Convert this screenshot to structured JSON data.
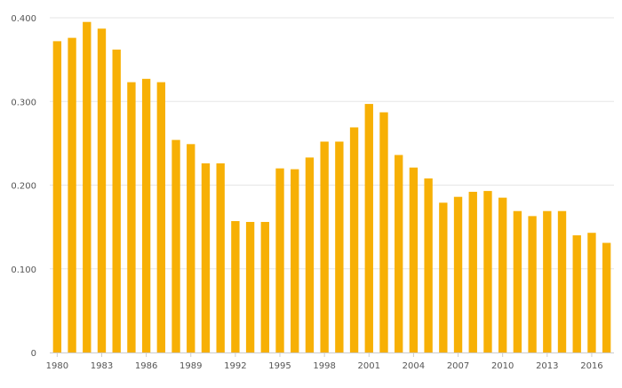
{
  "chart_data": {
    "type": "bar",
    "title": "",
    "xlabel": "",
    "ylabel": "",
    "ylim": [
      0,
      0.4
    ],
    "grid": true,
    "legend": "none",
    "bar_color": "#F7B005",
    "grid_color": "#e6e6e6",
    "axis_color": "#cccccc",
    "y_ticks": [
      {
        "value": 0,
        "label": "0"
      },
      {
        "value": 0.1,
        "label": "0.100"
      },
      {
        "value": 0.2,
        "label": "0.200"
      },
      {
        "value": 0.3,
        "label": "0.300"
      },
      {
        "value": 0.4,
        "label": "0.400"
      }
    ],
    "x_tick_labels": [
      "1980",
      "1983",
      "1986",
      "1989",
      "1992",
      "1995",
      "1998",
      "2001",
      "2004",
      "2007",
      "2010",
      "2013",
      "2016"
    ],
    "categories": [
      "1980",
      "1981",
      "1982",
      "1983",
      "1984",
      "1985",
      "1986",
      "1987",
      "1988",
      "1989",
      "1990",
      "1991",
      "1992",
      "1993",
      "1994",
      "1995",
      "1996",
      "1997",
      "1998",
      "1999",
      "2000",
      "2001",
      "2002",
      "2003",
      "2004",
      "2005",
      "2006",
      "2007",
      "2008",
      "2009",
      "2010",
      "2011",
      "2012",
      "2013",
      "2014",
      "2015",
      "2016",
      "2017"
    ],
    "values": [
      0.372,
      0.376,
      0.395,
      0.387,
      0.362,
      0.323,
      0.327,
      0.323,
      0.254,
      0.249,
      0.226,
      0.226,
      0.157,
      0.156,
      0.156,
      0.22,
      0.219,
      0.233,
      0.252,
      0.252,
      0.269,
      0.297,
      0.287,
      0.236,
      0.221,
      0.208,
      0.179,
      0.186,
      0.192,
      0.193,
      0.185,
      0.169,
      0.163,
      0.169,
      0.169,
      0.14,
      0.143,
      0.131
    ]
  }
}
